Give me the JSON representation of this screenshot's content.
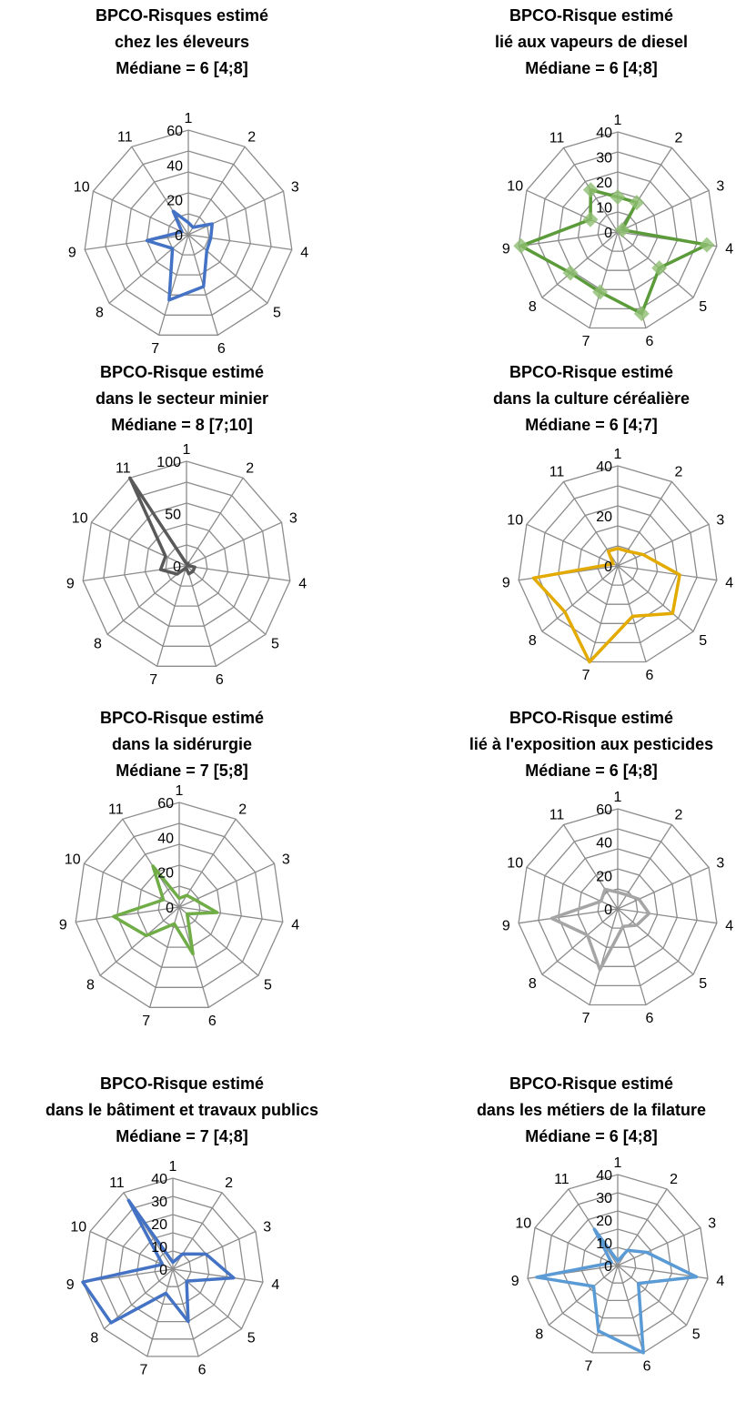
{
  "charts": [
    {
      "title_lines": [
        "BPCO-Risques estimé",
        "chez les éleveurs",
        "Médiane = 6 [4;8]"
      ],
      "chart_data": {
        "type": "radar",
        "categories": [
          "1",
          "2",
          "3",
          "4",
          "5",
          "6",
          "7",
          "8",
          "9",
          "10",
          "11"
        ],
        "rlim": [
          0,
          60
        ],
        "rticks": [
          "0",
          "20",
          "40",
          "60"
        ],
        "series": [
          {
            "values": [
              7,
              5,
              15,
              13,
              14,
              31,
              39,
              12,
              24,
              4,
              16
            ],
            "color": "#4472C4",
            "markers": false
          }
        ]
      }
    },
    {
      "title_lines": [
        "BPCO-Risque estimé",
        "lié aux vapeurs de diesel",
        "Médiane = 6 [4;8]"
      ],
      "chart_data": {
        "type": "radar",
        "categories": [
          "1",
          "2",
          "3",
          "4",
          "5",
          "6",
          "7",
          "8",
          "9",
          "10",
          "11"
        ],
        "rlim": [
          0,
          40
        ],
        "rticks": [
          "0",
          "10",
          "20",
          "30",
          "40"
        ],
        "series": [
          {
            "values": [
              14,
              14,
              2,
              36,
              22,
              34,
              25,
              25,
              39,
              12,
              20
            ],
            "color": "#5B9B3A",
            "markers": true
          }
        ]
      }
    },
    {
      "title_lines": [
        "BPCO-Risque estimé",
        "dans le secteur minier",
        "Médiane  = 8  [7;10]"
      ],
      "chart_data": {
        "type": "radar",
        "categories": [
          "1",
          "2",
          "3",
          "4",
          "5",
          "6",
          "7",
          "8",
          "9",
          "10",
          "11"
        ],
        "rlim": [
          0,
          100
        ],
        "rticks": [
          "0",
          "50",
          "100"
        ],
        "series": [
          {
            "values": [
              2,
              3,
              1,
              8,
              8,
              8,
              2,
              12,
              25,
              22,
              100
            ],
            "color": "#595959",
            "markers": false
          }
        ]
      }
    },
    {
      "title_lines": [
        "BPCO-Risque estimé",
        "dans la culture céréalière",
        "Médiane = 6 [4;7]"
      ],
      "chart_data": {
        "type": "radar",
        "categories": [
          "1",
          "2",
          "3",
          "4",
          "5",
          "6",
          "7",
          "8",
          "9",
          "10",
          "11"
        ],
        "rlim": [
          0,
          40
        ],
        "rticks": [
          "0",
          "20",
          "40"
        ],
        "series": [
          {
            "values": [
              7,
              7,
              11,
              25,
              29,
              21,
              40,
              28,
              34,
              2,
              7
            ],
            "color": "#E3AA00",
            "markers": false
          }
        ]
      }
    },
    {
      "title_lines": [
        "BPCO-Risque estimé",
        "dans la sidérurgie",
        "Médiane  = 7 [5;8]"
      ],
      "chart_data": {
        "type": "radar",
        "categories": [
          "1",
          "2",
          "3",
          "4",
          "5",
          "6",
          "7",
          "8",
          "9",
          "10",
          "11"
        ],
        "rlim": [
          0,
          60
        ],
        "rticks": [
          "0",
          "20",
          "40",
          "60"
        ],
        "series": [
          {
            "values": [
              5,
              8,
              10,
              22,
              6,
              28,
              10,
              25,
              38,
              10,
              28
            ],
            "color": "#70AD47",
            "markers": false
          }
        ]
      }
    },
    {
      "title_lines": [
        "BPCO-Risque estimé",
        "lié à l'exposition aux pesticides",
        "Médiane = 6 [4;8]"
      ],
      "chart_data": {
        "type": "radar",
        "categories": [
          "1",
          "2",
          "3",
          "4",
          "5",
          "6",
          "7",
          "8",
          "9",
          "10",
          "11"
        ],
        "rlim": [
          0,
          60
        ],
        "rticks": [
          "0",
          "20",
          "40",
          "60"
        ],
        "series": [
          {
            "values": [
              10,
              10,
              14,
              19,
              15,
              11,
              38,
              24,
              40,
              11,
              14
            ],
            "color": "#A5A5A5",
            "markers": false
          }
        ]
      }
    },
    {
      "title_lines": [
        "BPCO-Risque estimé",
        "dans le bâtiment et travaux publics",
        "Médiane = 7 [4;8]"
      ],
      "chart_data": {
        "type": "radar",
        "categories": [
          "1",
          "2",
          "3",
          "4",
          "5",
          "6",
          "7",
          "8",
          "9",
          "10",
          "11"
        ],
        "rlim": [
          0,
          40
        ],
        "rticks": [
          "0",
          "10",
          "20",
          "30",
          "40"
        ],
        "series": [
          {
            "values": [
              3,
              8,
              16,
              27,
              8,
              24,
              11,
              36,
              40,
              5,
              36
            ],
            "color": "#4472C4",
            "markers": false
          }
        ]
      }
    },
    {
      "title_lines": [
        "BPCO-Risque estimé",
        "dans les métiers de la filature",
        "Médiane = 6 [4;8]"
      ],
      "chart_data": {
        "type": "radar",
        "categories": [
          "1",
          "2",
          "3",
          "4",
          "5",
          "6",
          "7",
          "8",
          "9",
          "10",
          "11"
        ],
        "rlim": [
          0,
          40
        ],
        "rticks": [
          "0",
          "10",
          "20",
          "30",
          "40"
        ],
        "series": [
          {
            "values": [
              2,
              8,
              14,
              35,
              12,
              40,
              30,
              14,
              36,
              3,
              19
            ],
            "color": "#5B9BD5",
            "markers": false
          }
        ]
      }
    }
  ]
}
